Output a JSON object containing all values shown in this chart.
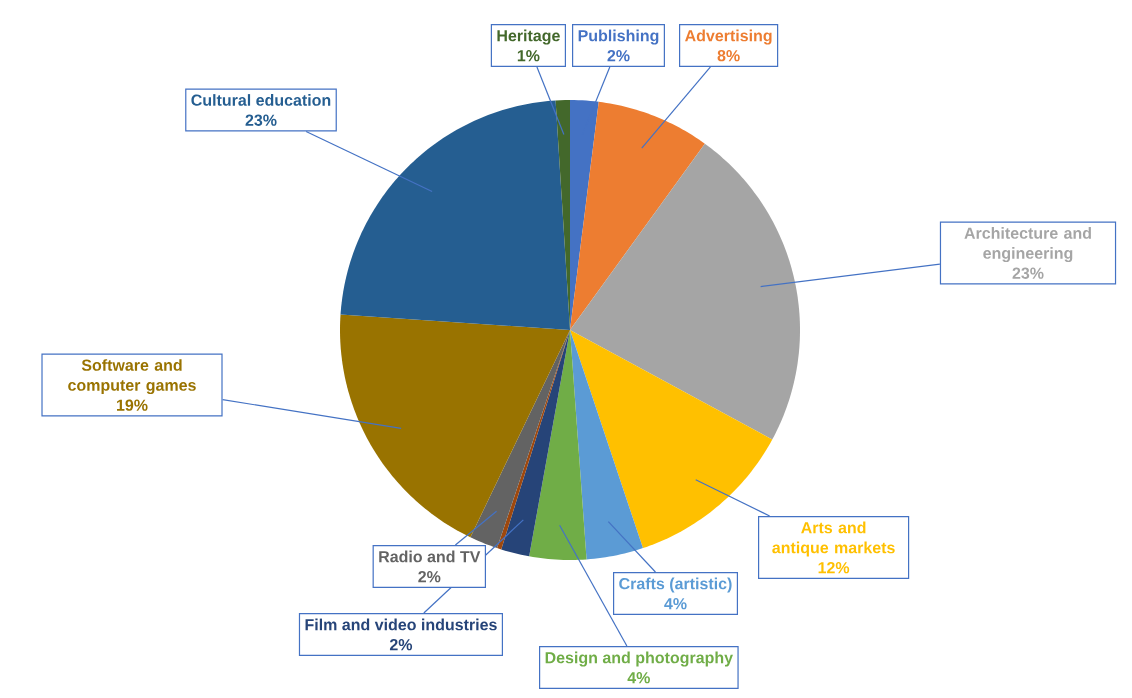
{
  "chart_data": {
    "type": "pie",
    "categories": [
      "Publishing",
      "Advertising",
      "Architecture and engineering",
      "Arts and antique markets",
      "Crafts (artistic)",
      "Design and photography",
      "Film and video industries",
      null,
      "Radio and TV",
      "Software and computer games",
      "Cultural education",
      "Heritage"
    ],
    "values": [
      2,
      8,
      23,
      12,
      4,
      4,
      2,
      0.3,
      2,
      19,
      23,
      1
    ],
    "colors": [
      "#4472c4",
      "#ed7d31",
      "#a5a5a5",
      "#ffc000",
      "#5b9bd5",
      "#70ad47",
      "#264478",
      "#9e480e",
      "#636363",
      "#997300",
      "#255e91",
      "#43682b"
    ],
    "value_labels": [
      "2%",
      "8%",
      "23%",
      "12%",
      "4%",
      "4%",
      "2%",
      null,
      "2%",
      "19%",
      "23%",
      "1%"
    ]
  }
}
